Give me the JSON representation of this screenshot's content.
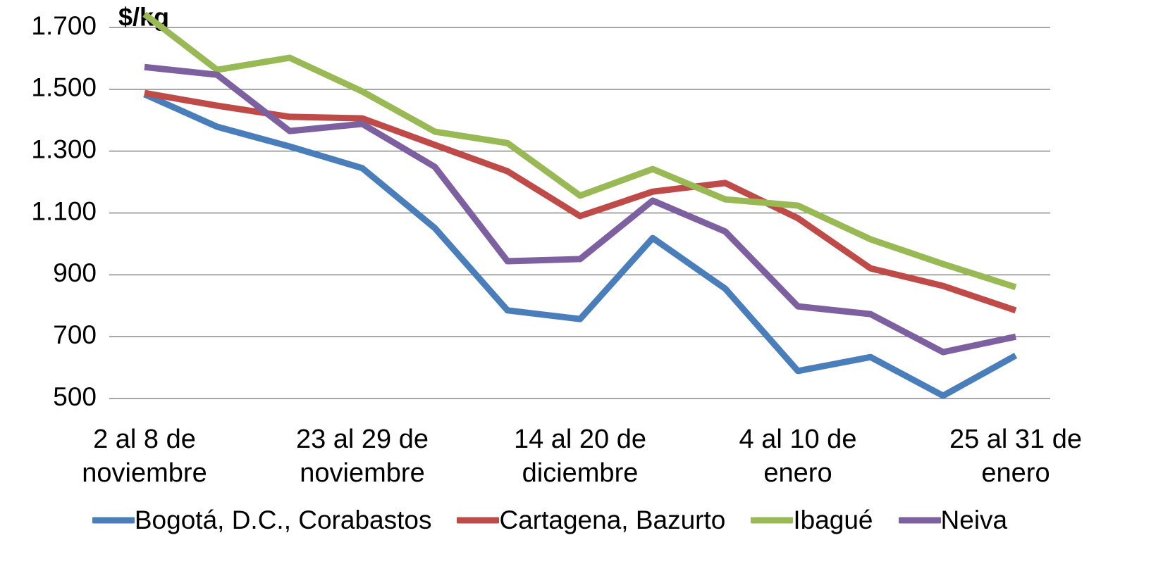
{
  "chart_data": {
    "type": "line",
    "title": "$/kg",
    "categories": [
      "2 al 8 de noviembre",
      null,
      null,
      "23 al 29 de noviembre",
      null,
      null,
      "14 al 20 de diciembre",
      null,
      null,
      "4 al 10 de enero",
      null,
      null,
      "25 al 31 de enero"
    ],
    "series": [
      {
        "name": "Bogotá, D.C., Corabastos",
        "color": "#4a7ebb",
        "values": [
          1484,
          1379,
          1315,
          1245,
          1051,
          785,
          757,
          1019,
          855,
          589,
          634,
          509,
          639
        ]
      },
      {
        "name": "Cartagena, Bazurto",
        "color": "#be4b48",
        "values": [
          1488,
          1447,
          1411,
          1406,
          1320,
          1235,
          1090,
          1169,
          1197,
          1083,
          921,
          864,
          785
        ]
      },
      {
        "name": "Ibagué",
        "color": "#98b954",
        "values": [
          1743,
          1563,
          1602,
          1493,
          1363,
          1326,
          1156,
          1242,
          1144,
          1124,
          1015,
          935,
          860
        ]
      },
      {
        "name": "Neiva",
        "color": "#7d60a0",
        "values": [
          1572,
          1547,
          1365,
          1388,
          1249,
          944,
          951,
          1140,
          1040,
          798,
          773,
          650,
          700
        ]
      }
    ],
    "ylim": [
      500,
      1700
    ],
    "yticks": [
      {
        "value": 500,
        "label": "500"
      },
      {
        "value": 700,
        "label": "700"
      },
      {
        "value": 900,
        "label": "900"
      },
      {
        "value": 1100,
        "label": "1.100"
      },
      {
        "value": 1300,
        "label": "1.300"
      },
      {
        "value": 1500,
        "label": "1.500"
      },
      {
        "value": 1700,
        "label": "1.700"
      }
    ],
    "grid": true,
    "legend": "bottom"
  }
}
